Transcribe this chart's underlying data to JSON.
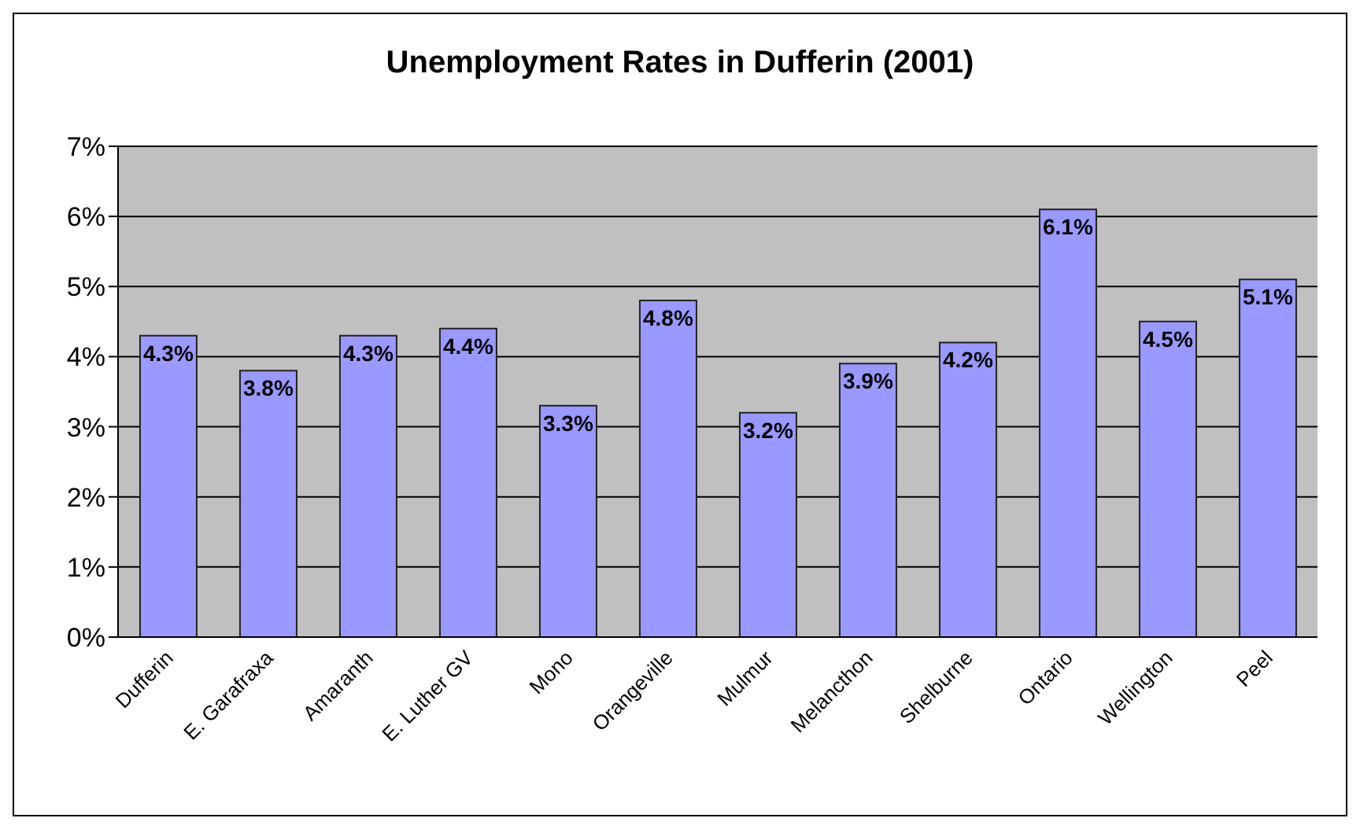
{
  "chart_data": {
    "type": "bar",
    "title": "Unemployment Rates in Dufferin (2001)",
    "categories": [
      "Dufferin",
      "E. Garafraxa",
      "Amaranth",
      "E. Luther GV",
      "Mono",
      "Orangeville",
      "Mulmur",
      "Melancthon",
      "Shelburne",
      "Ontario",
      "Wellington",
      "Peel"
    ],
    "values": [
      4.3,
      3.8,
      4.3,
      4.4,
      3.3,
      4.8,
      3.2,
      3.9,
      4.2,
      6.1,
      4.5,
      5.1
    ],
    "value_labels": [
      "4.3%",
      "3.8%",
      "4.3%",
      "4.4%",
      "3.3%",
      "4.8%",
      "3.2%",
      "3.9%",
      "4.2%",
      "6.1%",
      "4.5%",
      "5.1%"
    ],
    "color": "#9999ff",
    "ylim": [
      0,
      7
    ],
    "yticks": [
      {
        "value": 0,
        "label": "0%"
      },
      {
        "value": 1,
        "label": "1%"
      },
      {
        "value": 2,
        "label": "2%"
      },
      {
        "value": 3,
        "label": "3%"
      },
      {
        "value": 4,
        "label": "4%"
      },
      {
        "value": 5,
        "label": "5%"
      },
      {
        "value": 6,
        "label": "6%"
      },
      {
        "value": 7,
        "label": "7%"
      }
    ],
    "grid": "y"
  }
}
